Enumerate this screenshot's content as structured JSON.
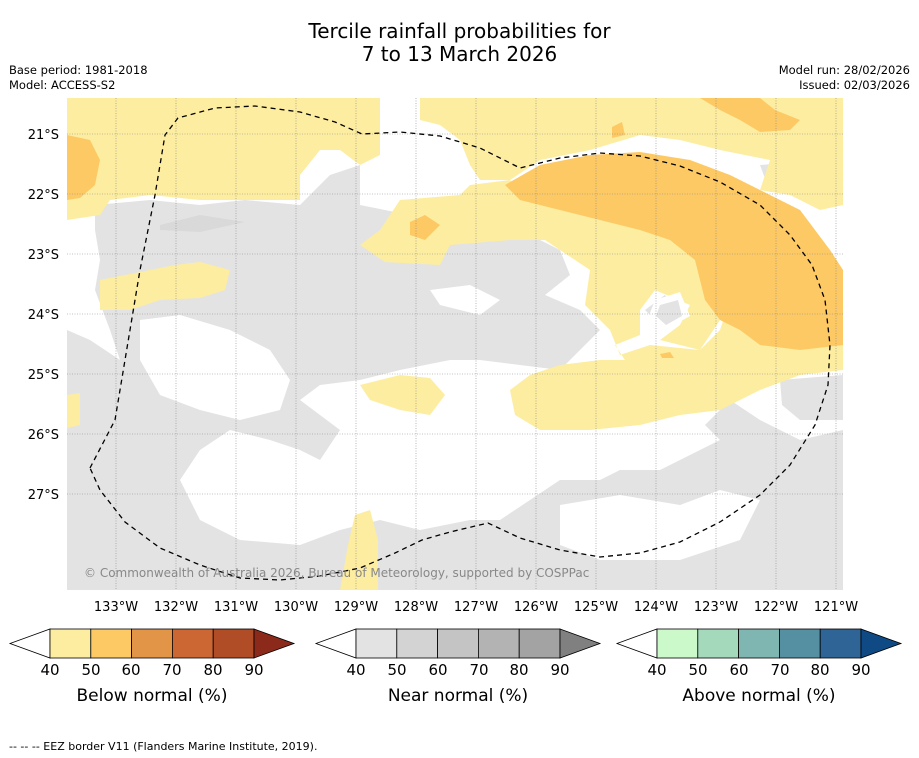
{
  "title": {
    "line1": "Tercile rainfall probabilities for",
    "line2": "7 to 13 March 2026"
  },
  "meta": {
    "base_period": "Base period: 1981-2018",
    "model": "Model: ACCESS-S2",
    "model_run": "Model run: 28/02/2026",
    "issued": "Issued: 02/03/2026"
  },
  "map": {
    "lat_labels": [
      "21°S",
      "22°S",
      "23°S",
      "24°S",
      "25°S",
      "26°S",
      "27°S"
    ],
    "lon_labels": [
      "133°W",
      "132°W",
      "131°W",
      "130°W",
      "129°W",
      "128°W",
      "127°W",
      "126°W",
      "125°W",
      "124°W",
      "123°W",
      "122°W",
      "121°W"
    ],
    "copyright": "© Commonwealth of Australia 2026, Bureau of Meteorology, supported by COSPPac",
    "colors": {
      "below_50": "#fdeda0",
      "below_60": "#fdc965",
      "near_50": "#e3e3e3",
      "eez_line": "#000000"
    }
  },
  "colorbars": [
    {
      "title": "Below normal (%)",
      "ticks": [
        "40",
        "50",
        "60",
        "70",
        "80",
        "90"
      ],
      "colors": [
        "#ffffff",
        "#fdeda0",
        "#fdc965",
        "#e29447",
        "#cc6633",
        "#b04c26",
        "#8b2a1a"
      ]
    },
    {
      "title": "Near normal (%)",
      "ticks": [
        "40",
        "50",
        "60",
        "70",
        "80",
        "90"
      ],
      "colors": [
        "#ffffff",
        "#e3e3e3",
        "#d3d3d3",
        "#c4c4c4",
        "#b3b3b3",
        "#a3a3a3",
        "#808080"
      ]
    },
    {
      "title": "Above normal (%)",
      "ticks": [
        "40",
        "50",
        "60",
        "70",
        "80",
        "90"
      ],
      "colors": [
        "#ffffff",
        "#cbf9ca",
        "#a4d9bc",
        "#7fb6b1",
        "#5590a2",
        "#2f6497",
        "#0f4a85"
      ]
    }
  ],
  "footer": "-- -- -- EEZ border V11 (Flanders Marine Institute, 2019)."
}
